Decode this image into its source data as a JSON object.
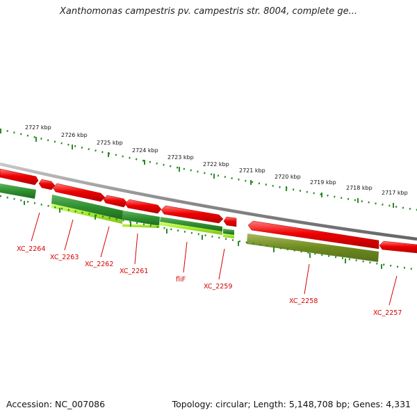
{
  "header": {
    "title": "Xanthomonas campestris pv. campestris str. 8004, complete ge..."
  },
  "footer": {
    "accession": "Accession: NC_007086",
    "summary": "Topology: circular; Length: 5,148,708 bp; Genes: 4,331"
  },
  "ruler": {
    "labels": [
      "2727 kbp",
      "2726 kbp",
      "2725 kbp",
      "2724 kbp",
      "2723 kbp",
      "2722 kbp",
      "2721 kbp",
      "2720 kbp",
      "2719 kbp",
      "2718 kbp",
      "2717 kbp"
    ]
  },
  "genes": {
    "labels": [
      "XC_2264",
      "XC_2263",
      "XC_2262",
      "XC_2261",
      "fliF",
      "XC_2259",
      "XC_2258",
      "XC_2257"
    ]
  },
  "colors": {
    "backbone": "#8c8c8c",
    "cds": "#e60000",
    "track_dark_green": "#2e8b2e",
    "track_light_green": "#9ee01e",
    "track_olive": "#6e8a1e",
    "ticks": "#2a8a2a",
    "gene_label": "#d40000"
  }
}
